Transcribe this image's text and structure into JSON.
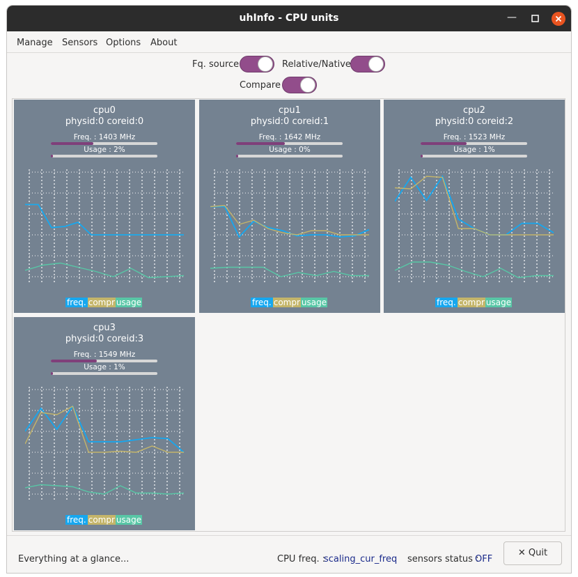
{
  "window": {
    "title": "uhInfo - CPU units",
    "min_icon": "minimize-icon",
    "max_icon": "maximize-icon",
    "close_icon": "close-icon"
  },
  "menu": [
    "Manage",
    "Sensors",
    "Options",
    "About"
  ],
  "toggles": {
    "fq_source": {
      "label": "Fq. source",
      "on": true
    },
    "relative_native": {
      "label": "Relative/Native",
      "on": true
    },
    "compare": {
      "label": "Compare",
      "on": true
    }
  },
  "colors": {
    "freq": "#16a7ef",
    "compr": "#c4b56a",
    "usage": "#58c7a6",
    "accent": "#924d8b",
    "panel": "#748291"
  },
  "legend": {
    "freq": "freq.",
    "compr": "compr",
    "usage": "usage"
  },
  "cpus": [
    {
      "name": "cpu0",
      "ids": "physid:0 coreid:0",
      "freq_label": "Freq. : 1403 MHz",
      "freq_fraction": 0.4,
      "usage_label": "Usage : 2%",
      "usage_fraction": 0.02,
      "chart_data": {
        "type": "line",
        "ylim": [
          0,
          100
        ],
        "grid": true,
        "series": [
          {
            "key": "compr",
            "values": [
              69,
              69,
              47,
              48,
              52,
              40,
              40,
              40,
              40,
              40,
              40,
              40,
              40
            ]
          },
          {
            "key": "freq",
            "values": [
              69,
              69,
              47,
              48,
              52,
              40,
              40,
              40,
              40,
              40,
              40,
              40,
              40
            ]
          },
          {
            "key": "usage",
            "values": [
              6,
              11,
              13,
              9,
              5,
              0,
              8,
              -1,
              0,
              1
            ]
          }
        ]
      }
    },
    {
      "name": "cpu1",
      "ids": "physid:0 coreid:1",
      "freq_label": "Freq. : 1642 MHz",
      "freq_fraction": 0.46,
      "usage_label": "Usage : 0%",
      "usage_fraction": 0.0,
      "chart_data": {
        "type": "line",
        "ylim": [
          0,
          100
        ],
        "grid": true,
        "series": [
          {
            "key": "freq",
            "values": [
              67,
              67,
              38,
              53,
              47,
              44,
              39,
              40,
              40,
              38,
              39,
              45
            ]
          },
          {
            "key": "compr",
            "values": [
              67,
              68,
              50,
              54,
              46,
              42,
              40,
              44,
              44,
              40,
              40,
              40
            ]
          },
          {
            "key": "usage",
            "values": [
              8,
              9,
              9,
              9,
              0,
              4,
              1,
              5,
              1,
              1
            ]
          }
        ]
      }
    },
    {
      "name": "cpu2",
      "ids": "physid:0 coreid:2",
      "freq_label": "Freq. : 1523 MHz",
      "freq_fraction": 0.43,
      "usage_label": "Usage : 1%",
      "usage_fraction": 0.01,
      "chart_data": {
        "type": "line",
        "ylim": [
          0,
          100
        ],
        "grid": true,
        "series": [
          {
            "key": "freq",
            "values": [
              72,
              95,
              73,
              96,
              55,
              46,
              40,
              40,
              51,
              51,
              42
            ]
          },
          {
            "key": "compr",
            "values": [
              85,
              84,
              96,
              95,
              46,
              46,
              40,
              40,
              40,
              40,
              40
            ]
          },
          {
            "key": "usage",
            "values": [
              6,
              14,
              14,
              11,
              5,
              0,
              8,
              -1,
              1,
              1
            ]
          }
        ]
      }
    },
    {
      "name": "cpu3",
      "ids": "physid:0 coreid:3",
      "freq_label": "Freq. : 1549 MHz",
      "freq_fraction": 0.43,
      "usage_label": "Usage : 1%",
      "usage_fraction": 0.01,
      "chart_data": {
        "type": "line",
        "ylim": [
          0,
          100
        ],
        "grid": true,
        "series": [
          {
            "key": "freq",
            "values": [
              60,
              82,
              62,
              84,
              50,
              50,
              50,
              52,
              54,
              53,
              40
            ]
          },
          {
            "key": "compr",
            "values": [
              48,
              78,
              76,
              84,
              40,
              40,
              41,
              40,
              46,
              40,
              40
            ]
          },
          {
            "key": "usage",
            "values": [
              6,
              9,
              8,
              7,
              2,
              0,
              8,
              1,
              1,
              0,
              1
            ]
          }
        ]
      }
    }
  ],
  "status": {
    "message": "Everything at a glance...",
    "cpu_freq_label": "CPU freq. :",
    "cpu_freq_value": "scaling_cur_freq",
    "sensors_label": "sensors status :",
    "sensors_value": "OFF",
    "quit_label": "Quit",
    "quit_icon": "close-x-icon"
  }
}
